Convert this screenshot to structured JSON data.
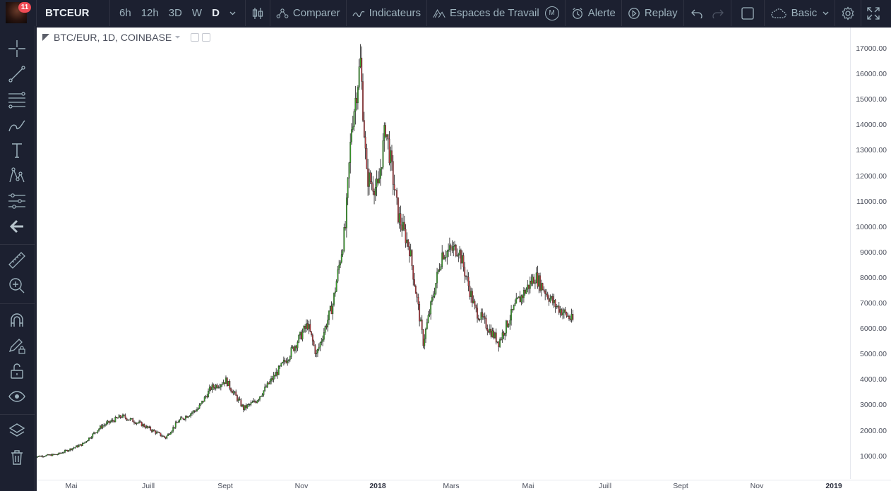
{
  "toolbar": {
    "notification_count": "11",
    "symbol": "BTCEUR",
    "resolutions": [
      "6h",
      "12h",
      "3D",
      "W",
      "D"
    ],
    "compare_label": "Comparer",
    "indicators_label": "Indicateurs",
    "workspaces_label": "Espaces de Travail",
    "workspaces_badge": "M",
    "alert_label": "Alerte",
    "replay_label": "Replay",
    "layout_name": "Basic"
  },
  "legend": {
    "title": "BTC/EUR, 1D, COINBASE"
  },
  "colors": {
    "up": "#3aa52b",
    "down": "#b23a3e",
    "wick": "#1a1a1a",
    "toolbar_bg": "#1c2030",
    "accent_badge": "#ef4b55"
  },
  "chart_data": {
    "type": "candlestick",
    "title": "BTC/EUR, 1D, COINBASE",
    "y_axis_labels": [
      "17000.00",
      "16000.00",
      "15000.00",
      "14000.00",
      "13000.00",
      "12000.00",
      "11000.00",
      "10000.00",
      "9000.00",
      "8000.00",
      "7000.00",
      "6000.00",
      "5000.00",
      "4000.00",
      "3000.00",
      "2000.00",
      "1000.00"
    ],
    "x_axis_labels": [
      "Mai",
      "Juill",
      "Sept",
      "Nov",
      "2018",
      "Mars",
      "Mai",
      "Juill",
      "Sept",
      "Nov",
      "2019"
    ],
    "x_axis_bold": [
      "2018",
      "2019"
    ],
    "ylim": [
      0,
      17500
    ],
    "approx_close_series": [
      {
        "date": "2017-04-01",
        "close": 1000
      },
      {
        "date": "2017-04-20",
        "close": 1100
      },
      {
        "date": "2017-05-10",
        "close": 1500
      },
      {
        "date": "2017-05-25",
        "close": 2200
      },
      {
        "date": "2017-06-10",
        "close": 2600
      },
      {
        "date": "2017-06-25",
        "close": 2300
      },
      {
        "date": "2017-07-15",
        "close": 1750
      },
      {
        "date": "2017-07-25",
        "close": 2400
      },
      {
        "date": "2017-08-10",
        "close": 2900
      },
      {
        "date": "2017-08-20",
        "close": 3700
      },
      {
        "date": "2017-09-01",
        "close": 4000
      },
      {
        "date": "2017-09-15",
        "close": 2900
      },
      {
        "date": "2017-09-25",
        "close": 3200
      },
      {
        "date": "2017-10-10",
        "close": 4200
      },
      {
        "date": "2017-10-20",
        "close": 4900
      },
      {
        "date": "2017-11-05",
        "close": 6200
      },
      {
        "date": "2017-11-12",
        "close": 5000
      },
      {
        "date": "2017-11-25",
        "close": 7000
      },
      {
        "date": "2017-12-05",
        "close": 10000
      },
      {
        "date": "2017-12-10",
        "close": 14000
      },
      {
        "date": "2017-12-17",
        "close": 16500
      },
      {
        "date": "2017-12-22",
        "close": 12000
      },
      {
        "date": "2017-12-31",
        "close": 11500
      },
      {
        "date": "2018-01-06",
        "close": 14000
      },
      {
        "date": "2018-01-16",
        "close": 10500
      },
      {
        "date": "2018-01-25",
        "close": 9200
      },
      {
        "date": "2018-02-05",
        "close": 5500
      },
      {
        "date": "2018-02-20",
        "close": 9000
      },
      {
        "date": "2018-03-05",
        "close": 9200
      },
      {
        "date": "2018-03-18",
        "close": 6800
      },
      {
        "date": "2018-04-06",
        "close": 5500
      },
      {
        "date": "2018-04-20",
        "close": 7000
      },
      {
        "date": "2018-05-05",
        "close": 8100
      },
      {
        "date": "2018-05-20",
        "close": 7000
      },
      {
        "date": "2018-06-05",
        "close": 6300
      }
    ]
  }
}
